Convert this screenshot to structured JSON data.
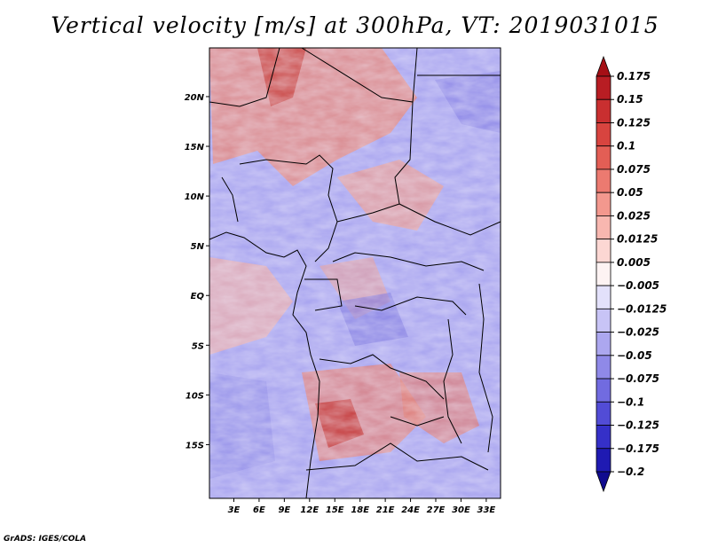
{
  "title": "Vertical velocity [m/s] at 300hPa, VT: 2019031015",
  "credit": "GrADS: IGES/COLA",
  "map": {
    "lat_labels": [
      "20N",
      "15N",
      "10N",
      "5N",
      "EQ",
      "5S",
      "10S",
      "15S"
    ],
    "lat_values": [
      20,
      15,
      10,
      5,
      0,
      -5,
      -10,
      -15
    ],
    "lon_labels": [
      "3E",
      "6E",
      "9E",
      "12E",
      "15E",
      "18E",
      "21E",
      "24E",
      "27E",
      "30E",
      "33E"
    ],
    "lon_values": [
      3,
      6,
      9,
      12,
      15,
      18,
      21,
      24,
      27,
      30,
      33
    ],
    "lon_range": [
      0.1,
      34.7
    ],
    "lat_range": [
      -20.4,
      24.9
    ]
  },
  "colorbar": {
    "labels": [
      "0.175",
      "0.15",
      "0.125",
      "0.1",
      "0.075",
      "0.05",
      "0.025",
      "0.0125",
      "0.005",
      "−0.005",
      "−0.0125",
      "−0.025",
      "−0.05",
      "−0.075",
      "−0.1",
      "−0.125",
      "−0.175",
      "−0.2"
    ],
    "colors": [
      "#a50f15",
      "#b81d23",
      "#c92f30",
      "#d8443f",
      "#e35e55",
      "#ec7a70",
      "#f3988e",
      "#f8b7b0",
      "#fcd7d3",
      "#fdf3f3",
      "#e3e1fb",
      "#c8c4f6",
      "#aca7ef",
      "#8f89e8",
      "#716be0",
      "#524cd6",
      "#3530c8",
      "#1f1ab2",
      "#100b8f"
    ]
  }
}
